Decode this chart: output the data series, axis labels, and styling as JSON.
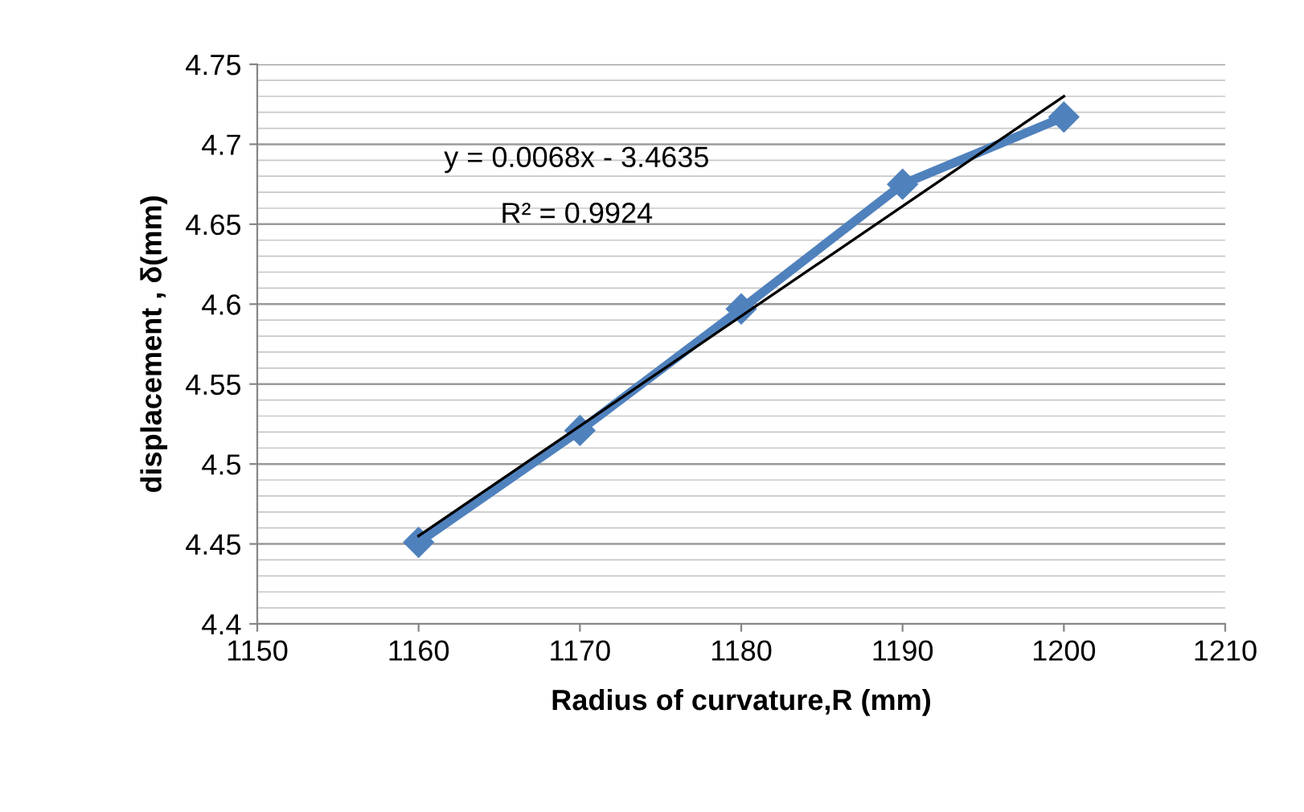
{
  "chart_data": {
    "type": "line",
    "xlabel": "Radius of curvature,R (mm)",
    "ylabel": "displacement , δ(mm)",
    "x": [
      1160,
      1170,
      1180,
      1190,
      1200
    ],
    "series": [
      {
        "color": "#4f81bd",
        "values": [
          4.451,
          4.521,
          4.597,
          4.675,
          4.717
        ],
        "marker": "diamond",
        "line_style": "solid"
      },
      {
        "type": "line",
        "x": [
          1160,
          1200
        ],
        "color": "#000000",
        "values": [
          4.455,
          4.73
        ],
        "marker": "none"
      }
    ],
    "annotations": [
      "y = 0.0068x - 3.4635",
      "R² = 0.9924"
    ],
    "xlim": [
      1150,
      1210
    ],
    "xticks": [
      1150,
      1160,
      1170,
      1180,
      1190,
      1200,
      1210
    ],
    "ylim": [
      4.4,
      4.75
    ],
    "yticks": [
      4.4,
      4.45,
      4.5,
      4.55,
      4.6,
      4.65,
      4.7,
      4.75
    ],
    "grid": "y",
    "legend": false
  }
}
